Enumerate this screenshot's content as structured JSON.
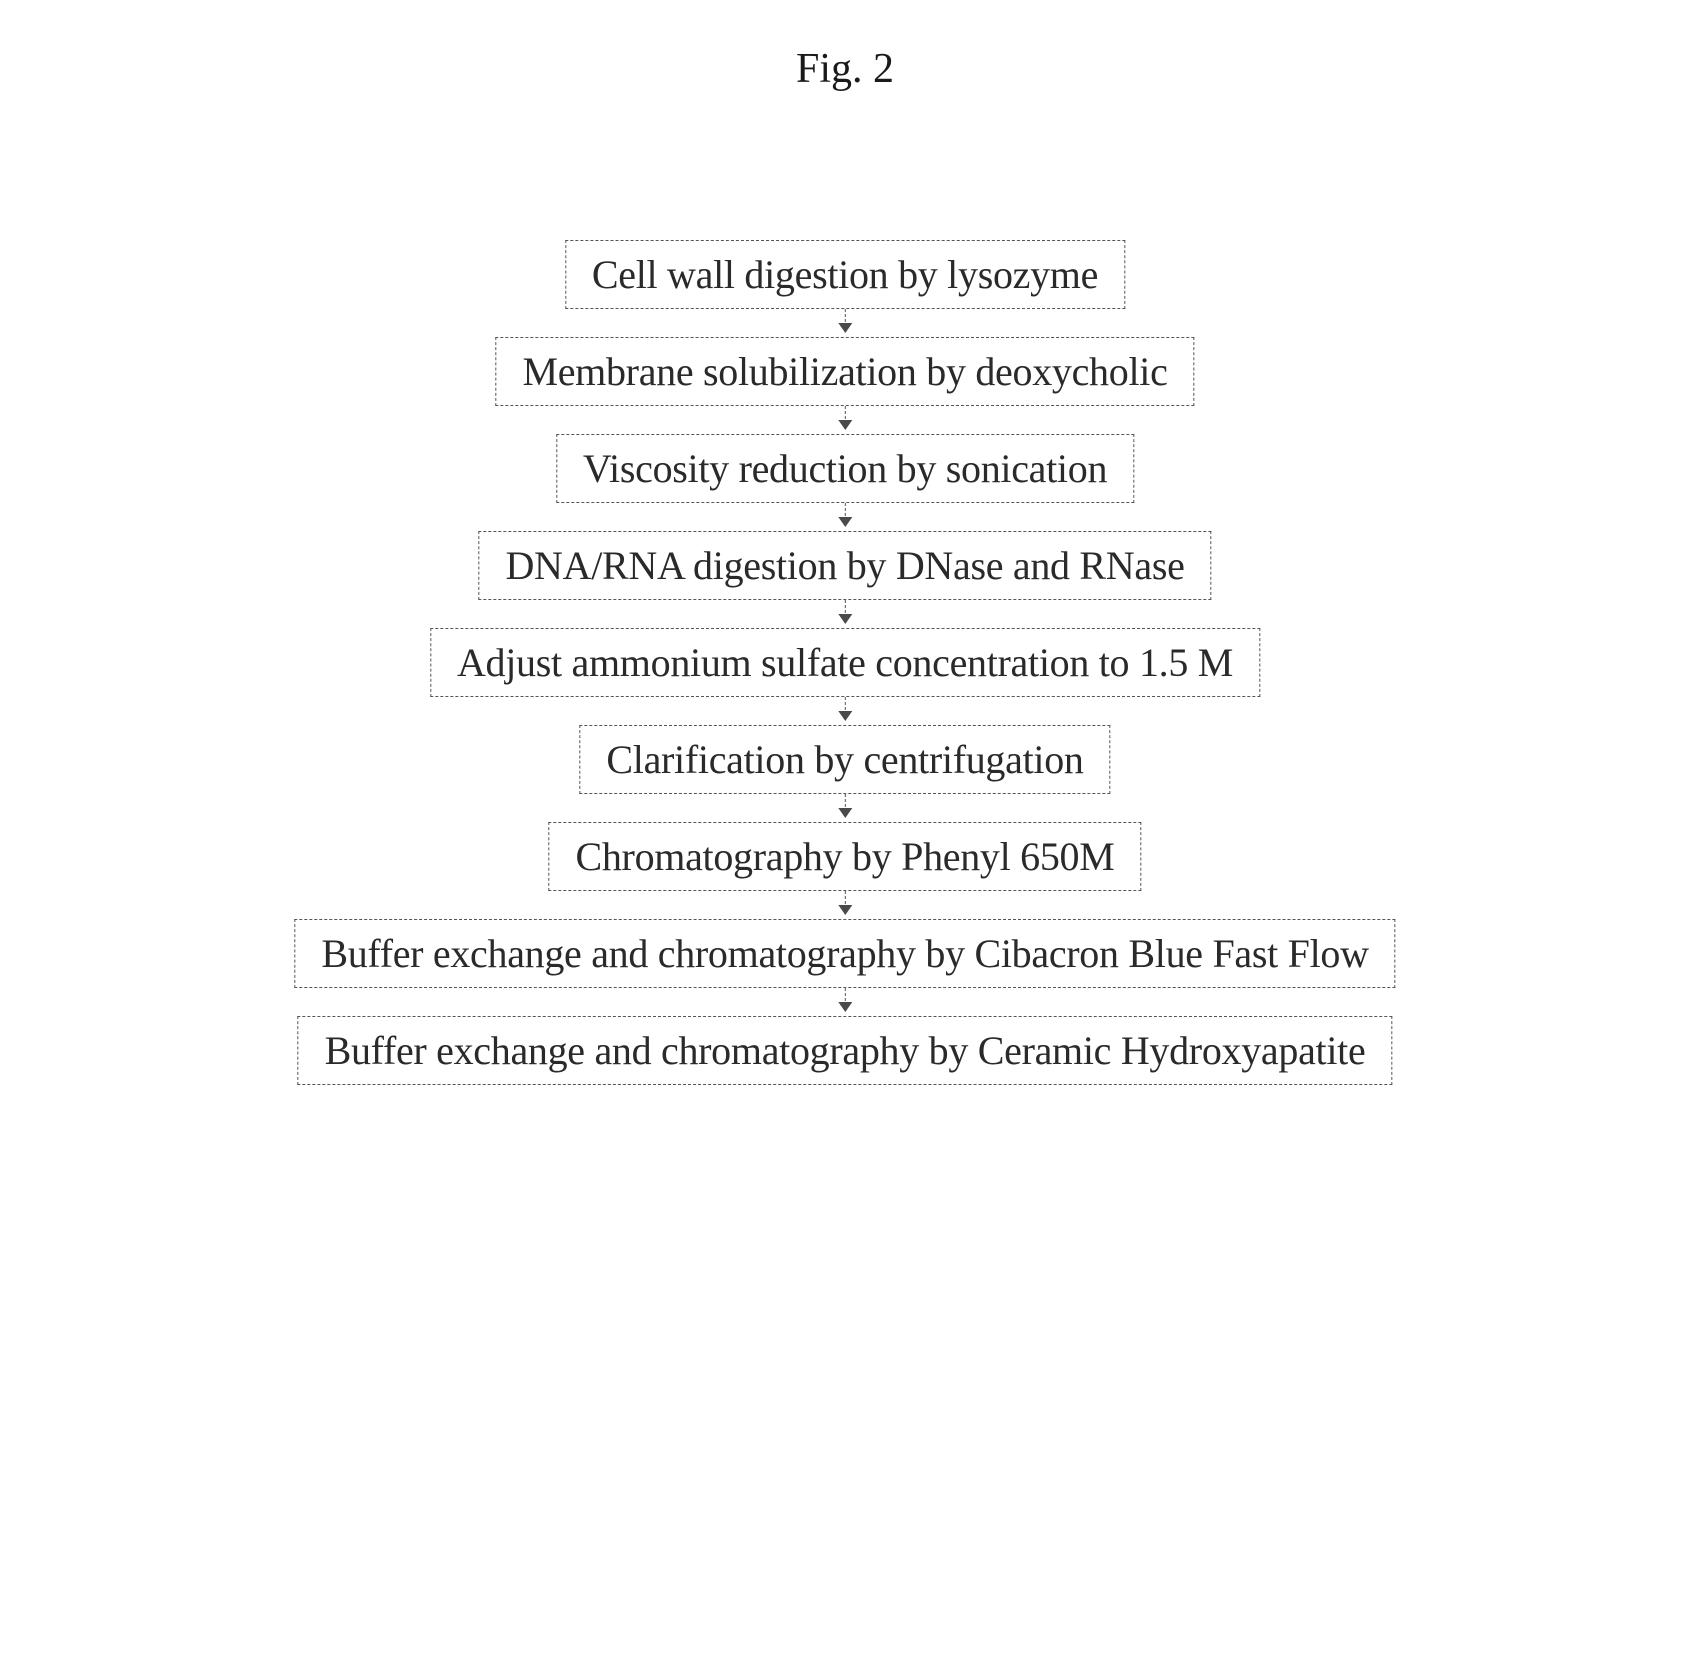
{
  "figure": {
    "title": "Fig. 2",
    "title_fontsize": 42,
    "title_color": "#1a1a1a"
  },
  "flowchart": {
    "type": "flowchart",
    "direction": "vertical",
    "background_color": "#ffffff",
    "box_border_style": "dashed",
    "box_border_color": "#555555",
    "box_border_width": 1,
    "box_padding_y": 10,
    "box_padding_x": 26,
    "text_color": "#2a2a2a",
    "text_fontsize": 40,
    "font_family": "Times New Roman",
    "arrow_color": "#4a4a4a",
    "arrow_height": 28,
    "arrow_style": "dashed-stem-solid-head",
    "steps": [
      {
        "label": "Cell wall digestion by lysozyme"
      },
      {
        "label": "Membrane solubilization by deoxycholic"
      },
      {
        "label": "Viscosity reduction by sonication"
      },
      {
        "label": "DNA/RNA digestion by DNase and RNase"
      },
      {
        "label": "Adjust ammonium sulfate concentration to 1.5 M"
      },
      {
        "label": "Clarification by centrifugation"
      },
      {
        "label": "Chromatography by Phenyl 650M"
      },
      {
        "label": "Buffer exchange and chromatography by Cibacron Blue Fast Flow"
      },
      {
        "label": "Buffer exchange and chromatography by Ceramic Hydroxyapatite"
      }
    ]
  }
}
